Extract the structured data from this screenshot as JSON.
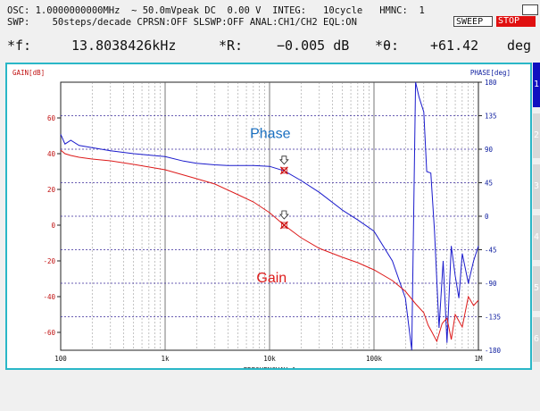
{
  "header": {
    "row1": "OSC: 1.0000000000MHz  ∼ 50.0mVpeak DC  0.00 V  INTEG:   10cycle   HMNC:  1",
    "row2": "SWP:    50steps/decade CPRSN:OFF SLSWP:OFF ANAL:CH1/CH2 EQL:ON",
    "sweep_label": "SWEEP",
    "stop_label": "STOP"
  },
  "readout": {
    "f_label": "*f:",
    "f_value": "13.8038426kHz",
    "r_label": "*R:",
    "r_value": "−0.005 dB",
    "theta_label": "*θ:",
    "theta_value": "+61.42",
    "theta_unit": "deg"
  },
  "sidebar_tabs": [
    "1",
    "2",
    "3",
    "4",
    "5",
    "6"
  ],
  "chart_data": {
    "type": "line",
    "x_scale": "log",
    "xlabel": "FREQUENCY[Hz]",
    "ylabel_left": "GAIN[dB]",
    "ylabel_right": "PHASE[deg]",
    "xlim": [
      100,
      1000000
    ],
    "ylim_left": [
      -70,
      80
    ],
    "ylim_right": [
      -180,
      180
    ],
    "x_tick_labels": [
      "100",
      "1k",
      "10k",
      "100k",
      "1M"
    ],
    "x_tick_values": [
      100,
      1000,
      10000,
      100000,
      1000000
    ],
    "y_left_ticks": [
      60,
      40,
      20,
      0,
      -20,
      -40,
      -60
    ],
    "y_right_ticks": [
      180,
      135,
      90,
      45,
      0,
      -45,
      -90,
      -135,
      -180
    ],
    "grid": true,
    "annotations": {
      "phase_label": "Phase",
      "gain_label": "Gain"
    },
    "markers": [
      {
        "series": "Phase",
        "x": 13800,
        "y": 61.42
      },
      {
        "series": "Gain",
        "x": 13800,
        "y": 0
      }
    ],
    "series": [
      {
        "color": "#1a1acc",
        "axis": "right",
        "x": [
          100,
          110,
          125,
          150,
          200,
          300,
          500,
          1000,
          1500,
          2000,
          3000,
          4000,
          5000,
          7000,
          10000,
          13800,
          20000,
          30000,
          50000,
          70000,
          100000,
          150000,
          200000,
          230000,
          250000,
          270000,
          300000,
          320000,
          350000,
          380000,
          420000,
          460000,
          500000,
          550000,
          600000,
          650000,
          700000,
          800000,
          900000,
          1000000
        ],
        "y": [
          110,
          97,
          102,
          95,
          92,
          88,
          84,
          80,
          74,
          71,
          69,
          68,
          68,
          68,
          67,
          61,
          48,
          32,
          8,
          -5,
          -20,
          -60,
          -110,
          -180,
          180,
          160,
          140,
          60,
          58,
          -20,
          -150,
          -60,
          -170,
          -40,
          -80,
          -110,
          -50,
          -90,
          -60,
          -40
        ]
      },
      {
        "color": "#dd1a1a",
        "axis": "left",
        "x": [
          100,
          110,
          125,
          150,
          200,
          300,
          500,
          1000,
          2000,
          3000,
          5000,
          7000,
          10000,
          13800,
          20000,
          30000,
          50000,
          70000,
          100000,
          150000,
          200000,
          250000,
          300000,
          330000,
          360000,
          400000,
          450000,
          500000,
          550000,
          600000,
          700000,
          800000,
          900000,
          1000000
        ],
        "y": [
          42,
          40,
          39,
          38,
          37,
          36,
          34,
          31,
          26,
          23,
          17,
          13,
          7,
          0,
          -7,
          -13,
          -18,
          -21,
          -25,
          -31,
          -37,
          -44,
          -49,
          -56,
          -60,
          -65,
          -55,
          -52,
          -64,
          -50,
          -57,
          -40,
          -45,
          -42
        ]
      }
    ]
  }
}
